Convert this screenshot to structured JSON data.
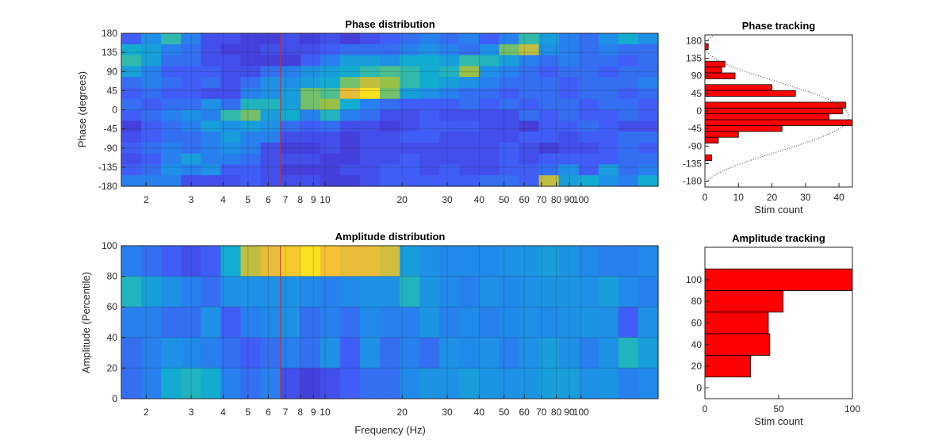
{
  "chart_data": [
    {
      "id": "phase_distribution",
      "type": "heatmap",
      "title": "Phase distribution",
      "xlabel": "",
      "ylabel": "Phase (degrees)",
      "x_scale": "log",
      "x_ticks": [
        2,
        3,
        4,
        5,
        6,
        7,
        8,
        9,
        10,
        20,
        30,
        40,
        50,
        60,
        70,
        80,
        90,
        100
      ],
      "x_tick_labels": [
        "2",
        "3",
        "4",
        "5",
        "6",
        "7",
        "8",
        "9",
        "10",
        "20",
        "30",
        "40",
        "50",
        "60",
        "70",
        "80",
        "90",
        "100"
      ],
      "y_ticks": [
        180,
        135,
        90,
        45,
        0,
        -45,
        -90,
        -135,
        -180
      ],
      "y_tick_labels": [
        "180",
        "135",
        "90",
        "45",
        "0",
        "-45",
        "-90",
        "-135",
        "-180"
      ],
      "ylim": [
        -180,
        180
      ],
      "marker_line_hz": 6.7,
      "marker_color": "#c03030",
      "colormap": "parula",
      "color_range": [
        0,
        1
      ],
      "n_columns": 27,
      "rows_top_to_bottom": [
        [
          0.25,
          0.4,
          0.6,
          0.35,
          0.2,
          0.2,
          0.15,
          0.15,
          0.2,
          0.15,
          0.2,
          0.15,
          0.2,
          0.25,
          0.3,
          0.35,
          0.3,
          0.35,
          0.25,
          0.35,
          0.6,
          0.45,
          0.35,
          0.3,
          0.4,
          0.5,
          0.4
        ],
        [
          0.5,
          0.45,
          0.35,
          0.3,
          0.2,
          0.15,
          0.15,
          0.2,
          0.2,
          0.2,
          0.25,
          0.3,
          0.3,
          0.3,
          0.35,
          0.4,
          0.35,
          0.3,
          0.4,
          0.7,
          0.8,
          0.4,
          0.35,
          0.3,
          0.35,
          0.3,
          0.3
        ],
        [
          0.6,
          0.45,
          0.3,
          0.3,
          0.2,
          0.2,
          0.15,
          0.15,
          0.15,
          0.25,
          0.35,
          0.45,
          0.45,
          0.4,
          0.5,
          0.5,
          0.45,
          0.6,
          0.55,
          0.45,
          0.35,
          0.3,
          0.35,
          0.3,
          0.3,
          0.25,
          0.3
        ],
        [
          0.45,
          0.35,
          0.25,
          0.25,
          0.25,
          0.2,
          0.2,
          0.3,
          0.35,
          0.4,
          0.45,
          0.5,
          0.6,
          0.65,
          0.6,
          0.5,
          0.55,
          0.75,
          0.4,
          0.35,
          0.3,
          0.25,
          0.3,
          0.3,
          0.25,
          0.3,
          0.3
        ],
        [
          0.3,
          0.35,
          0.3,
          0.25,
          0.3,
          0.2,
          0.3,
          0.4,
          0.4,
          0.45,
          0.5,
          0.7,
          0.8,
          0.75,
          0.6,
          0.5,
          0.45,
          0.4,
          0.35,
          0.3,
          0.3,
          0.3,
          0.25,
          0.3,
          0.3,
          0.3,
          0.35
        ],
        [
          0.25,
          0.3,
          0.25,
          0.25,
          0.2,
          0.2,
          0.35,
          0.4,
          0.45,
          0.7,
          0.65,
          0.85,
          0.95,
          0.7,
          0.45,
          0.4,
          0.35,
          0.3,
          0.3,
          0.25,
          0.3,
          0.3,
          0.25,
          0.3,
          0.3,
          0.25,
          0.3
        ],
        [
          0.3,
          0.25,
          0.3,
          0.3,
          0.4,
          0.3,
          0.55,
          0.55,
          0.45,
          0.7,
          0.75,
          0.5,
          0.35,
          0.3,
          0.25,
          0.25,
          0.25,
          0.3,
          0.25,
          0.3,
          0.25,
          0.3,
          0.3,
          0.25,
          0.3,
          0.3,
          0.25
        ],
        [
          0.25,
          0.3,
          0.35,
          0.4,
          0.35,
          0.6,
          0.7,
          0.45,
          0.5,
          0.35,
          0.55,
          0.35,
          0.3,
          0.2,
          0.2,
          0.25,
          0.2,
          0.2,
          0.2,
          0.2,
          0.3,
          0.25,
          0.3,
          0.25,
          0.25,
          0.3,
          0.25
        ],
        [
          0.15,
          0.25,
          0.3,
          0.35,
          0.45,
          0.4,
          0.45,
          0.4,
          0.3,
          0.25,
          0.3,
          0.2,
          0.2,
          0.15,
          0.2,
          0.25,
          0.25,
          0.25,
          0.2,
          0.2,
          0.15,
          0.25,
          0.25,
          0.3,
          0.25,
          0.2,
          0.2
        ],
        [
          0.2,
          0.25,
          0.3,
          0.3,
          0.35,
          0.45,
          0.35,
          0.35,
          0.2,
          0.2,
          0.2,
          0.15,
          0.2,
          0.2,
          0.25,
          0.25,
          0.2,
          0.2,
          0.2,
          0.2,
          0.25,
          0.25,
          0.2,
          0.25,
          0.25,
          0.3,
          0.3
        ],
        [
          0.25,
          0.3,
          0.35,
          0.3,
          0.35,
          0.4,
          0.35,
          0.2,
          0.15,
          0.15,
          0.2,
          0.15,
          0.2,
          0.2,
          0.2,
          0.2,
          0.2,
          0.2,
          0.2,
          0.25,
          0.2,
          0.15,
          0.2,
          0.2,
          0.25,
          0.3,
          0.25
        ],
        [
          0.2,
          0.25,
          0.35,
          0.45,
          0.35,
          0.35,
          0.3,
          0.2,
          0.2,
          0.2,
          0.15,
          0.15,
          0.2,
          0.2,
          0.25,
          0.2,
          0.2,
          0.2,
          0.2,
          0.25,
          0.2,
          0.25,
          0.25,
          0.25,
          0.25,
          0.3,
          0.3
        ],
        [
          0.25,
          0.3,
          0.4,
          0.35,
          0.4,
          0.25,
          0.25,
          0.2,
          0.15,
          0.15,
          0.15,
          0.2,
          0.2,
          0.25,
          0.25,
          0.2,
          0.25,
          0.2,
          0.2,
          0.25,
          0.25,
          0.3,
          0.4,
          0.25,
          0.45,
          0.3,
          0.35
        ],
        [
          0.35,
          0.35,
          0.35,
          0.2,
          0.2,
          0.2,
          0.25,
          0.2,
          0.2,
          0.2,
          0.15,
          0.15,
          0.2,
          0.25,
          0.25,
          0.25,
          0.25,
          0.25,
          0.3,
          0.3,
          0.25,
          0.8,
          0.45,
          0.5,
          0.4,
          0.35,
          0.5
        ]
      ]
    },
    {
      "id": "phase_tracking",
      "type": "bar",
      "orientation": "horizontal",
      "title": "Phase tracking",
      "xlabel": "Stim count",
      "ylabel": "",
      "xlim": [
        0,
        44
      ],
      "x_ticks": [
        0,
        10,
        20,
        30,
        40
      ],
      "x_tick_labels": [
        "0",
        "10",
        "20",
        "30",
        "40"
      ],
      "ylim": [
        -195,
        195
      ],
      "y_ticks": [
        180,
        135,
        90,
        45,
        0,
        -45,
        -90,
        -135,
        -180
      ],
      "y_tick_labels": [
        "180",
        "135",
        "90",
        "45",
        "0",
        "-45",
        "-90",
        "-135",
        "-180"
      ],
      "bin_width": 15,
      "bin_centers": [
        165,
        150,
        135,
        120,
        105,
        90,
        75,
        60,
        45,
        30,
        15,
        0,
        -15,
        -30,
        -45,
        -60,
        -75,
        -90,
        -105,
        -120,
        -135,
        -150,
        -165
      ],
      "values": [
        1,
        0,
        0,
        6,
        5,
        9,
        0,
        20,
        27,
        0,
        42,
        41,
        37,
        44,
        23,
        10,
        4,
        0,
        0,
        2,
        0,
        0,
        0
      ],
      "bar_color": "#ff0000",
      "fit_curve": "cosine",
      "fit_amplitude": 43,
      "fit_center": -15
    },
    {
      "id": "amplitude_distribution",
      "type": "heatmap",
      "title": "Amplitude distribution",
      "xlabel": "Frequency (Hz)",
      "ylabel": "Amplitude (Percentile)",
      "x_scale": "log",
      "x_ticks": [
        2,
        3,
        4,
        5,
        6,
        7,
        8,
        9,
        10,
        20,
        30,
        40,
        50,
        60,
        70,
        80,
        90,
        100
      ],
      "x_tick_labels": [
        "2",
        "3",
        "4",
        "5",
        "6",
        "7",
        "8",
        "9",
        "10",
        "20",
        "30",
        "40",
        "50",
        "60",
        "70",
        "80",
        "90",
        "100"
      ],
      "y_ticks": [
        100,
        80,
        60,
        40,
        20,
        0
      ],
      "y_tick_labels": [
        "100",
        "80",
        "60",
        "40",
        "20",
        "0"
      ],
      "ylim": [
        0,
        100
      ],
      "marker_line_hz": 6.7,
      "marker_color": "#c03030",
      "colormap": "parula",
      "color_range": [
        0,
        1
      ],
      "n_columns": 27,
      "rows_top_to_bottom": [
        [
          0.35,
          0.3,
          0.25,
          0.2,
          0.25,
          0.5,
          0.8,
          0.85,
          0.9,
          0.95,
          0.88,
          0.85,
          0.85,
          0.82,
          0.45,
          0.4,
          0.38,
          0.38,
          0.38,
          0.4,
          0.42,
          0.45,
          0.42,
          0.38,
          0.35,
          0.35,
          0.38
        ],
        [
          0.55,
          0.45,
          0.4,
          0.35,
          0.3,
          0.4,
          0.4,
          0.4,
          0.4,
          0.38,
          0.35,
          0.38,
          0.4,
          0.4,
          0.55,
          0.42,
          0.38,
          0.35,
          0.4,
          0.38,
          0.4,
          0.42,
          0.42,
          0.4,
          0.45,
          0.38,
          0.35
        ],
        [
          0.35,
          0.35,
          0.3,
          0.3,
          0.4,
          0.25,
          0.35,
          0.38,
          0.4,
          0.3,
          0.35,
          0.3,
          0.38,
          0.35,
          0.35,
          0.42,
          0.35,
          0.38,
          0.35,
          0.38,
          0.4,
          0.38,
          0.4,
          0.42,
          0.4,
          0.25,
          0.4
        ],
        [
          0.3,
          0.35,
          0.4,
          0.38,
          0.35,
          0.3,
          0.25,
          0.3,
          0.35,
          0.3,
          0.4,
          0.25,
          0.4,
          0.3,
          0.35,
          0.3,
          0.4,
          0.38,
          0.4,
          0.35,
          0.4,
          0.45,
          0.4,
          0.35,
          0.4,
          0.55,
          0.45
        ],
        [
          0.3,
          0.35,
          0.5,
          0.55,
          0.5,
          0.35,
          0.3,
          0.35,
          0.2,
          0.15,
          0.2,
          0.25,
          0.3,
          0.3,
          0.38,
          0.42,
          0.4,
          0.45,
          0.42,
          0.4,
          0.42,
          0.45,
          0.45,
          0.4,
          0.42,
          0.35,
          0.38
        ]
      ]
    },
    {
      "id": "amplitude_tracking",
      "type": "bar",
      "orientation": "horizontal",
      "title": "Amplitude tracking",
      "xlabel": "Stim count",
      "ylabel": "",
      "xlim": [
        0,
        100
      ],
      "x_ticks": [
        0,
        50,
        100
      ],
      "x_tick_labels": [
        "0",
        "50",
        "100"
      ],
      "ylim": [
        -10,
        130
      ],
      "y_ticks": [
        100,
        80,
        60,
        40,
        20,
        0
      ],
      "y_tick_labels": [
        "100",
        "80",
        "60",
        "40",
        "20",
        "0"
      ],
      "bin_width": 20,
      "bin_centers": [
        100,
        80,
        60,
        40,
        20
      ],
      "values": [
        100,
        53,
        43,
        44,
        31
      ],
      "bar_color": "#ff0000"
    }
  ]
}
